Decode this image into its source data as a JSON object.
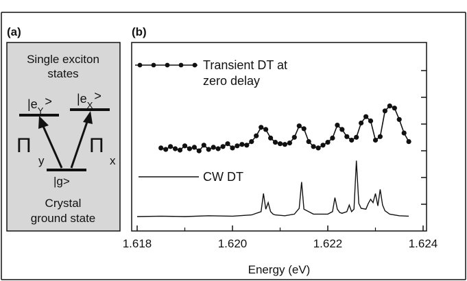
{
  "panel_a": {
    "label": "(a)",
    "top_text": [
      "Single exciton",
      "states"
    ],
    "level_y": "|e",
    "level_y_sub": "Y",
    "level_x": "|e",
    "level_x_sub": "X",
    "ket_close": ">",
    "ground_level": "|g>",
    "pi_symbol": "Π",
    "pi_y_sub": "y",
    "pi_x_sub": "x",
    "bottom_text": [
      "Crystal",
      "ground state"
    ],
    "background_color": "#d7d7d7"
  },
  "chart_data": {
    "type": "line",
    "panel_label": "(b)",
    "xlabel": "Energy (eV)",
    "ylabel": "",
    "xlim": [
      1.618,
      1.624
    ],
    "ylim": [
      0,
      10
    ],
    "x_ticks": [
      1.618,
      1.62,
      1.622,
      1.624
    ],
    "x_tick_labels": [
      "1.618",
      "1.620",
      "1.622",
      "1.624"
    ],
    "y_tick_labels_visible": false,
    "grid": false,
    "series": [
      {
        "name": "Transient DT at zero delay",
        "legend_lines": [
          "Transient DT at",
          "zero delay"
        ],
        "markers": true,
        "color": "#111111",
        "x": [
          1.6185,
          1.6186,
          1.6187,
          1.6188,
          1.6189,
          1.619,
          1.6191,
          1.6192,
          1.6193,
          1.6194,
          1.6195,
          1.6196,
          1.6197,
          1.6198,
          1.6199,
          1.62,
          1.6201,
          1.6202,
          1.6203,
          1.6204,
          1.6205,
          1.6206,
          1.6207,
          1.6208,
          1.6209,
          1.621,
          1.6211,
          1.6212,
          1.6213,
          1.6214,
          1.6215,
          1.6216,
          1.6217,
          1.6218,
          1.6219,
          1.622,
          1.6221,
          1.6222,
          1.6223,
          1.6224,
          1.6225,
          1.6226,
          1.6227,
          1.6228,
          1.6229,
          1.623,
          1.6231,
          1.6232,
          1.6233,
          1.6234,
          1.6235,
          1.6236,
          1.6237
        ],
        "y": [
          2.7,
          2.5,
          2.9,
          2.6,
          2.4,
          3.0,
          2.6,
          2.8,
          2.3,
          3.1,
          2.5,
          2.8,
          2.6,
          2.9,
          3.3,
          2.7,
          3.0,
          3.2,
          3.1,
          3.6,
          4.4,
          5.6,
          5.3,
          4.1,
          3.5,
          3.3,
          3.2,
          3.4,
          4.2,
          5.8,
          5.4,
          3.6,
          2.9,
          2.7,
          3.1,
          3.5,
          4.1,
          5.9,
          5.3,
          4.3,
          3.8,
          4.2,
          6.2,
          7.1,
          6.5,
          3.8,
          4.3,
          7.9,
          8.6,
          8.3,
          6.7,
          4.8,
          3.6
        ]
      },
      {
        "name": "CW DT",
        "legend_lines": [
          "CW DT"
        ],
        "markers": false,
        "color": "#111111",
        "x": [
          1.618,
          1.6185,
          1.619,
          1.6195,
          1.62,
          1.6204,
          1.6206,
          1.62065,
          1.6207,
          1.62075,
          1.6208,
          1.62085,
          1.6209,
          1.6211,
          1.6213,
          1.6214,
          1.62145,
          1.6215,
          1.6217,
          1.6219,
          1.622,
          1.6221,
          1.62215,
          1.6222,
          1.62225,
          1.6223,
          1.6224,
          1.62245,
          1.6225,
          1.62255,
          1.6226,
          1.62265,
          1.6227,
          1.6228,
          1.62285,
          1.6229,
          1.62295,
          1.623,
          1.62305,
          1.6231,
          1.62315,
          1.6232,
          1.6233,
          1.6235,
          1.6237
        ],
        "y": [
          0.0,
          0.05,
          0.0,
          0.1,
          0.05,
          0.2,
          0.6,
          2.8,
          0.9,
          1.7,
          0.6,
          0.3,
          0.2,
          0.1,
          0.3,
          1.0,
          4.2,
          0.9,
          0.3,
          0.3,
          0.3,
          0.6,
          2.3,
          0.9,
          0.5,
          0.4,
          0.6,
          1.4,
          0.6,
          0.9,
          6.8,
          1.6,
          1.0,
          0.9,
          1.6,
          2.1,
          1.7,
          2.8,
          1.3,
          3.3,
          1.4,
          0.7,
          0.3,
          0.1,
          0.05
        ]
      }
    ]
  }
}
